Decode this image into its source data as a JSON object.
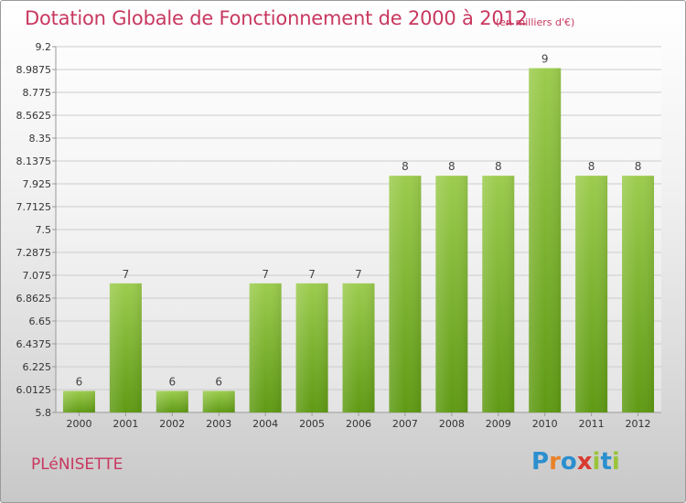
{
  "chart_data": {
    "type": "bar",
    "title": "Dotation Globale de Fonctionnement de 2000 à 2012",
    "subtitle": "(en milliers d'€)",
    "xlabel": "",
    "ylabel": "",
    "categories": [
      "2000",
      "2001",
      "2002",
      "2003",
      "2004",
      "2005",
      "2006",
      "2007",
      "2008",
      "2009",
      "2010",
      "2011",
      "2012"
    ],
    "values": [
      6,
      7,
      6,
      6,
      7,
      7,
      7,
      8,
      8,
      8,
      9,
      8,
      8
    ],
    "data_labels": [
      "6",
      "7",
      "6",
      "6",
      "7",
      "7",
      "7",
      "8",
      "8",
      "8",
      "9",
      "8",
      "8"
    ],
    "ylim": [
      5.8,
      9.2
    ],
    "y_ticks": [
      5.8,
      6.0125,
      6.225,
      6.4375,
      6.65,
      6.8625,
      7.075,
      7.2875,
      7.5,
      7.7125,
      7.925,
      8.1375,
      8.35,
      8.5625,
      8.775,
      8.9875,
      9.2
    ],
    "y_tick_labels": [
      "5.8",
      "6.0125",
      "6.225",
      "6.4375",
      "6.65",
      "6.8625",
      "7.075",
      "7.2875",
      "7.5",
      "7.7125",
      "7.925",
      "8.1375",
      "8.35",
      "8.5625",
      "8.775",
      "8.9875",
      "9.2"
    ],
    "grid": true,
    "legend": "none",
    "colors": {
      "bar_top": "#9ccc4e",
      "bar_bottom": "#5f9a14",
      "title": "#c8385f",
      "grid": "#cccccc"
    }
  },
  "footer": {
    "place_name": "PLéNISETTE",
    "logo_letters": [
      "P",
      "r",
      "o",
      "x",
      "i",
      "t",
      "i"
    ]
  }
}
